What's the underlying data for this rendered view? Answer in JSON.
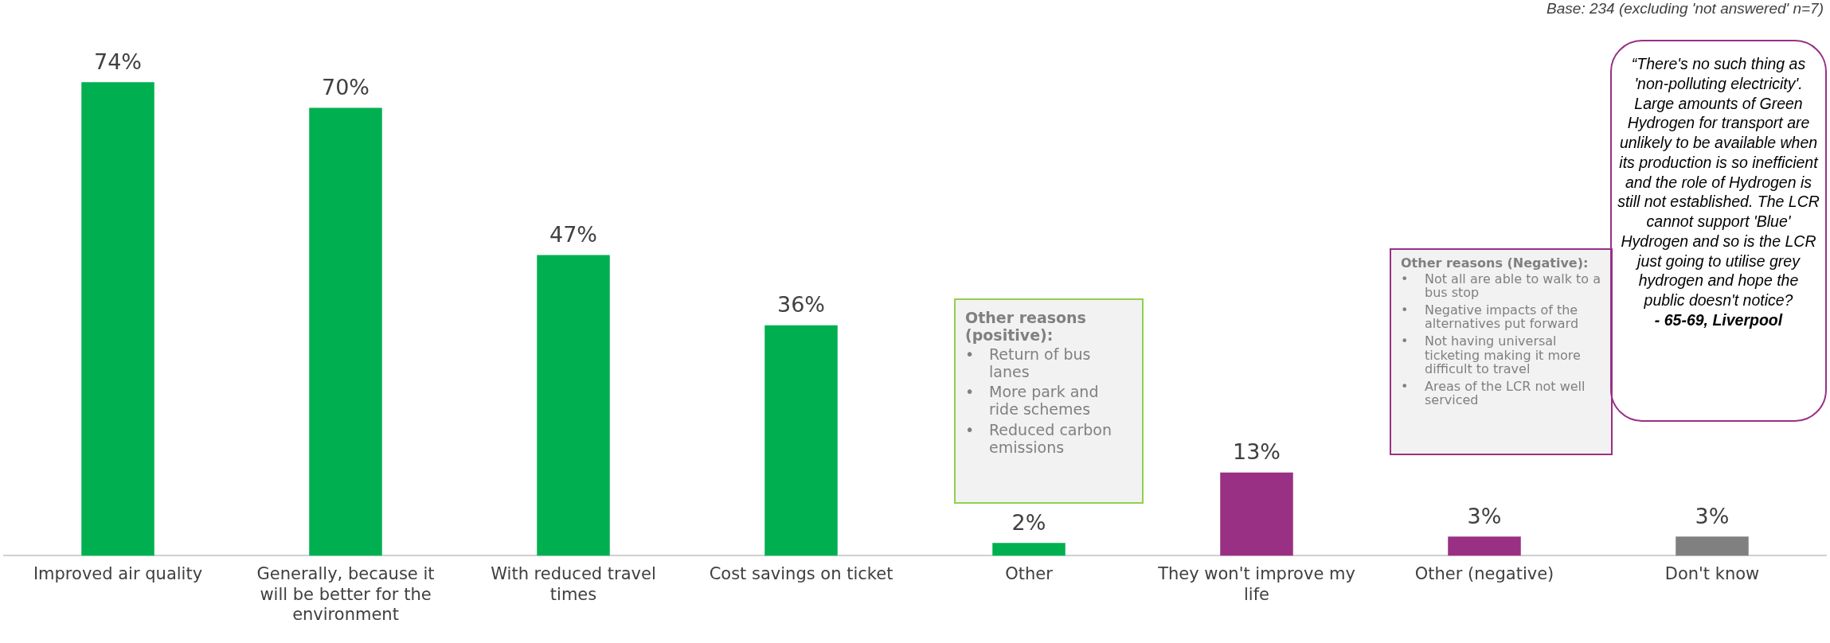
{
  "chart_data": {
    "type": "bar",
    "categories": [
      "Improved air quality",
      "Generally, because it will be better for the environment",
      "With reduced travel times",
      "Cost savings on ticket",
      "Other",
      "They won't improve my life",
      "Other (negative)",
      "Don't know"
    ],
    "values": [
      74,
      70,
      47,
      36,
      2,
      13,
      3,
      3
    ],
    "value_labels": [
      "74%",
      "70%",
      "47%",
      "36%",
      "2%",
      "13%",
      "3%",
      "3%"
    ],
    "colors": [
      "#00b050",
      "#00b050",
      "#00b050",
      "#00b050",
      "#00b050",
      "#993084",
      "#993084",
      "#808080"
    ],
    "legend": false,
    "grid": false,
    "annotations": [
      "Base: 234 (excluding 'not answered' n=7)",
      "Other reasons (positive):\n• Return of bus lanes\n• More park and ride schemes\n• Reduced carbon emissions",
      "Other reasons (Negative):\n• Not all are able to walk to a bus stop\n• Negative impacts of the alternatives put forward\n• Not having universal ticketing making it more difficult to travel\n• Areas of the LCR not well serviced",
      "“There's no such thing as 'non-polluting electricity'.  Large amounts of Green Hydrogen for transport are unlikely to be available when its production is so inefficient and the role of Hydrogen is still not established.  The LCR cannot support 'Blue' Hydrogen and so is the LCR just going to utilise grey hydrogen and hope the public doesn't notice?\n- 65-69, Liverpool"
    ]
  }
}
